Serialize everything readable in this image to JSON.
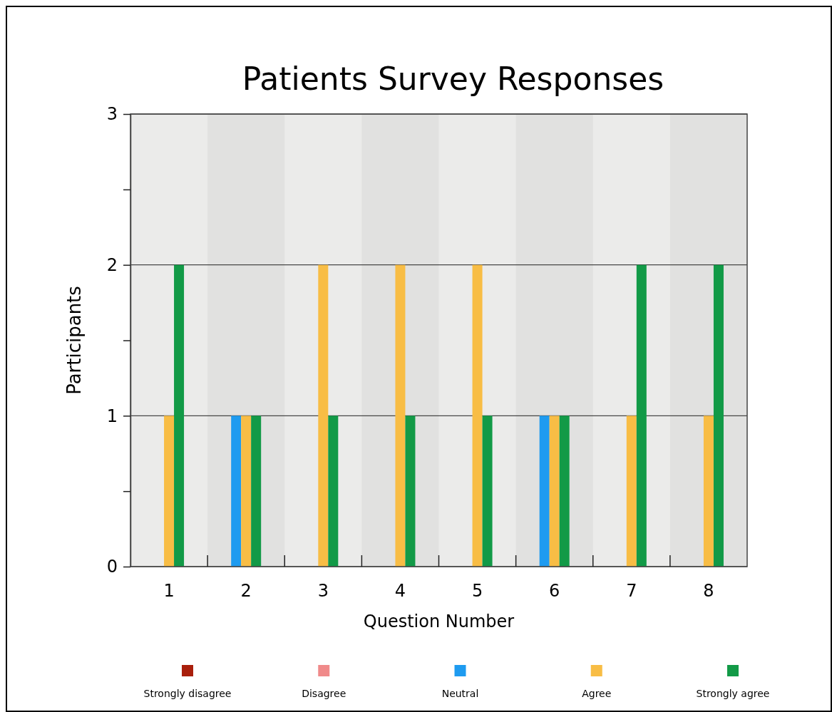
{
  "chart_data": {
    "type": "bar",
    "title": "Patients Survey Responses",
    "xlabel": "Question Number",
    "ylabel": "Participants",
    "categories": [
      "1",
      "2",
      "3",
      "4",
      "5",
      "6",
      "7",
      "8"
    ],
    "series": [
      {
        "name": "Strongly disagree",
        "color": "#a91f0c",
        "values": [
          0,
          0,
          0,
          0,
          0,
          0,
          0,
          0
        ]
      },
      {
        "name": "Disagree",
        "color": "#f08a8a",
        "values": [
          0,
          0,
          0,
          0,
          0,
          0,
          0,
          0
        ]
      },
      {
        "name": "Neutral",
        "color": "#1e9bf0",
        "values": [
          0,
          1,
          0,
          0,
          0,
          1,
          0,
          0
        ]
      },
      {
        "name": "Agree",
        "color": "#f8bd45",
        "values": [
          1,
          1,
          2,
          2,
          2,
          1,
          1,
          1
        ]
      },
      {
        "name": "Strongly agree",
        "color": "#129a47",
        "values": [
          2,
          1,
          1,
          1,
          1,
          1,
          2,
          2
        ]
      }
    ],
    "ylim": [
      0,
      3
    ],
    "yticks": [
      0,
      {
        "value": 0.5,
        "label": null
      },
      1,
      {
        "value": 1.5,
        "label": null
      },
      2,
      {
        "value": 2.5,
        "label": null
      },
      3
    ],
    "grid": "y",
    "legend": "bottom"
  }
}
